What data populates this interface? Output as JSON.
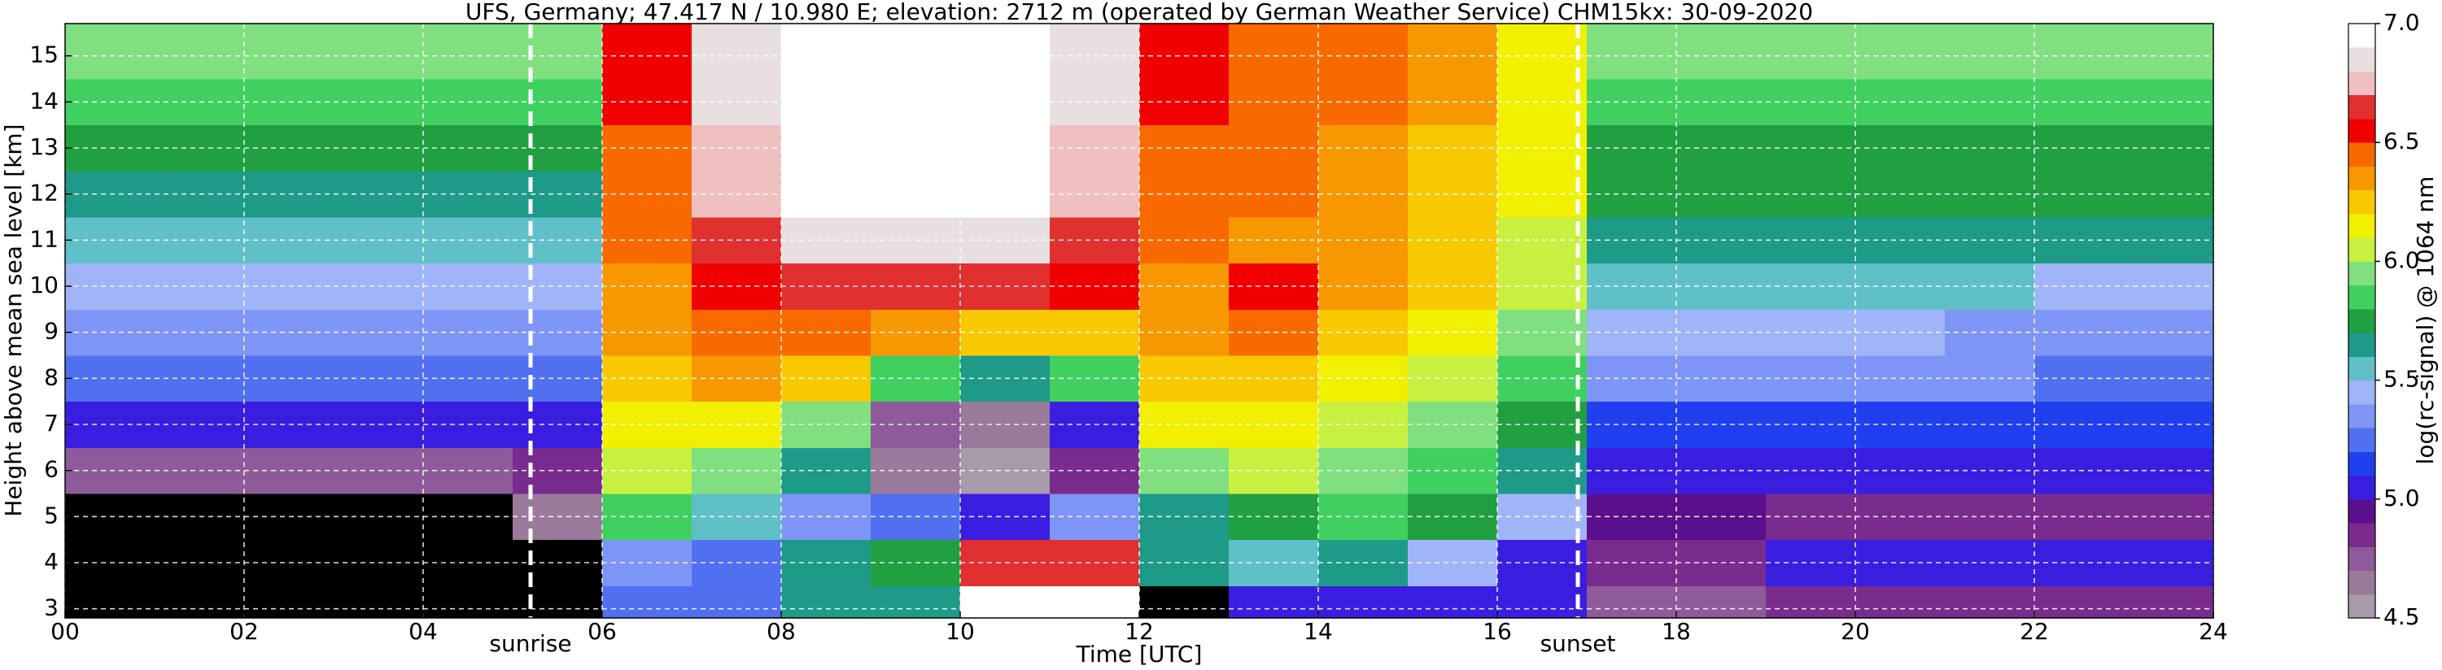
{
  "chart_data": {
    "type": "heatmap",
    "title": "UFS, Germany; 47.417 N / 10.980 E; elevation: 2712 m  (operated by German Weather Service)    CHM15kx: 30-09-2020",
    "x_label": "Time [UTC]",
    "y_label": "Height above mean sea level [km]",
    "colorbar_label": "log(rc-signal) @ 1064 nm",
    "x_bins": [
      0,
      1,
      2,
      3,
      4,
      5,
      6,
      7,
      8,
      9,
      10,
      11,
      12,
      13,
      14,
      15,
      16,
      17,
      18,
      19,
      20,
      21,
      22,
      23,
      24
    ],
    "y_bins": [
      2.8,
      3.5,
      4.5,
      5.5,
      6.5,
      7.5,
      8.5,
      9.5,
      10.5,
      11.5,
      12.5,
      13.5,
      14.5,
      15.7
    ],
    "z": [
      [
        4.3,
        4.3,
        4.3,
        4.3,
        4.3,
        4.3,
        5.2,
        5.2,
        5.6,
        5.6,
        6.9,
        6.9,
        4.3,
        5.0,
        5.0,
        5.0,
        5.0,
        4.7,
        4.7,
        4.8,
        4.8,
        4.8,
        4.8,
        4.8
      ],
      [
        4.3,
        4.3,
        4.3,
        4.3,
        4.3,
        4.3,
        5.3,
        5.2,
        5.6,
        5.7,
        6.6,
        6.6,
        5.6,
        5.5,
        5.6,
        5.4,
        5.0,
        4.8,
        4.8,
        5.0,
        5.0,
        5.0,
        5.0,
        5.0
      ],
      [
        4.4,
        4.4,
        4.4,
        4.4,
        4.4,
        4.6,
        5.8,
        5.5,
        5.3,
        5.2,
        5.0,
        5.3,
        5.6,
        5.7,
        5.8,
        5.7,
        5.4,
        4.9,
        4.9,
        4.8,
        4.8,
        4.8,
        4.8,
        4.8
      ],
      [
        4.7,
        4.7,
        4.7,
        4.7,
        4.7,
        4.8,
        6.0,
        5.9,
        5.6,
        4.6,
        4.5,
        4.8,
        5.9,
        6.0,
        5.9,
        5.8,
        5.6,
        5.0,
        5.0,
        5.0,
        5.0,
        5.0,
        5.0,
        5.0
      ],
      [
        5.0,
        5.0,
        5.0,
        5.0,
        5.0,
        5.0,
        6.1,
        6.1,
        5.9,
        4.7,
        4.6,
        5.0,
        6.1,
        6.1,
        6.0,
        5.9,
        5.7,
        5.1,
        5.1,
        5.1,
        5.1,
        5.1,
        5.1,
        5.1
      ],
      [
        5.2,
        5.2,
        5.2,
        5.2,
        5.2,
        5.2,
        6.2,
        6.3,
        6.2,
        5.8,
        5.6,
        5.8,
        6.2,
        6.2,
        6.1,
        6.0,
        5.8,
        5.3,
        5.3,
        5.3,
        5.3,
        5.3,
        5.2,
        5.2
      ],
      [
        5.3,
        5.3,
        5.3,
        5.3,
        5.3,
        5.3,
        6.3,
        6.4,
        6.4,
        6.3,
        6.2,
        6.2,
        6.3,
        6.4,
        6.2,
        6.1,
        5.9,
        5.4,
        5.4,
        5.4,
        5.4,
        5.3,
        5.3,
        5.3
      ],
      [
        5.4,
        5.4,
        5.4,
        5.4,
        5.4,
        5.4,
        6.3,
        6.5,
        6.6,
        6.6,
        6.6,
        6.5,
        6.3,
        6.5,
        6.3,
        6.2,
        6.0,
        5.5,
        5.5,
        5.5,
        5.5,
        5.5,
        5.4,
        5.4
      ],
      [
        5.5,
        5.5,
        5.5,
        5.5,
        5.5,
        5.5,
        6.4,
        6.6,
        6.8,
        6.8,
        6.8,
        6.6,
        6.4,
        6.3,
        6.3,
        6.2,
        6.0,
        5.6,
        5.6,
        5.6,
        5.6,
        5.6,
        5.6,
        5.6
      ],
      [
        5.6,
        5.6,
        5.6,
        5.6,
        5.6,
        5.6,
        6.4,
        6.7,
        6.9,
        6.9,
        6.9,
        6.7,
        6.4,
        6.4,
        6.3,
        6.2,
        6.1,
        5.7,
        5.7,
        5.7,
        5.7,
        5.7,
        5.7,
        5.7
      ],
      [
        5.7,
        5.7,
        5.7,
        5.7,
        5.7,
        5.7,
        6.4,
        6.7,
        6.9,
        6.9,
        6.9,
        6.7,
        6.4,
        6.4,
        6.3,
        6.2,
        6.1,
        5.7,
        5.7,
        5.7,
        5.7,
        5.7,
        5.7,
        5.7
      ],
      [
        5.8,
        5.8,
        5.8,
        5.8,
        5.8,
        5.8,
        6.5,
        6.8,
        6.9,
        6.9,
        6.9,
        6.8,
        6.5,
        6.4,
        6.4,
        6.3,
        6.1,
        5.8,
        5.8,
        5.8,
        5.8,
        5.8,
        5.8,
        5.8
      ],
      [
        5.9,
        5.9,
        5.9,
        5.9,
        5.9,
        5.9,
        6.5,
        6.8,
        6.9,
        6.9,
        6.9,
        6.8,
        6.5,
        6.4,
        6.4,
        6.3,
        6.1,
        5.9,
        5.9,
        5.9,
        5.9,
        5.9,
        5.9,
        5.9
      ]
    ],
    "xlim": [
      0,
      24
    ],
    "ylim": [
      2.8,
      15.7
    ],
    "xticks": [
      {
        "value": 0,
        "label": "00"
      },
      {
        "value": 2,
        "label": "02"
      },
      {
        "value": 4,
        "label": "04"
      },
      {
        "value": 6,
        "label": "06"
      },
      {
        "value": 8,
        "label": "08"
      },
      10,
      12,
      14,
      16,
      18,
      20,
      22,
      24
    ],
    "yticks": [
      3,
      4,
      5,
      6,
      7,
      8,
      9,
      10,
      11,
      12,
      13,
      14,
      15
    ],
    "clim": [
      4.5,
      7.0
    ],
    "colorbar_ticks": [
      4.5,
      {
        "value": 5,
        "label": "5.0"
      },
      5.5,
      {
        "value": 6,
        "label": "6.0"
      },
      6.5,
      {
        "value": 7,
        "label": "7.0"
      }
    ],
    "colors": [
      "#a89aa8",
      "#9a7a9a",
      "#8e5a9a",
      "#7a2c8e",
      "#5a0f8c",
      "#3a1ee0",
      "#2040f0",
      "#5070f0",
      "#7d96f5",
      "#a0b4f8",
      "#60c0c8",
      "#1e9a88",
      "#20a040",
      "#40d060",
      "#80e080",
      "#c8f040",
      "#f0f000",
      "#f8c800",
      "#f89800",
      "#f86a00",
      "#f00000",
      "#e03030",
      "#f0c0c0",
      "#e8e0e0",
      "#ffffff"
    ],
    "under_color": "#000000",
    "grid": true,
    "annotations": [
      {
        "x": 5.2,
        "text": "sunrise"
      },
      {
        "x": 16.9,
        "text": "sunset"
      }
    ]
  }
}
